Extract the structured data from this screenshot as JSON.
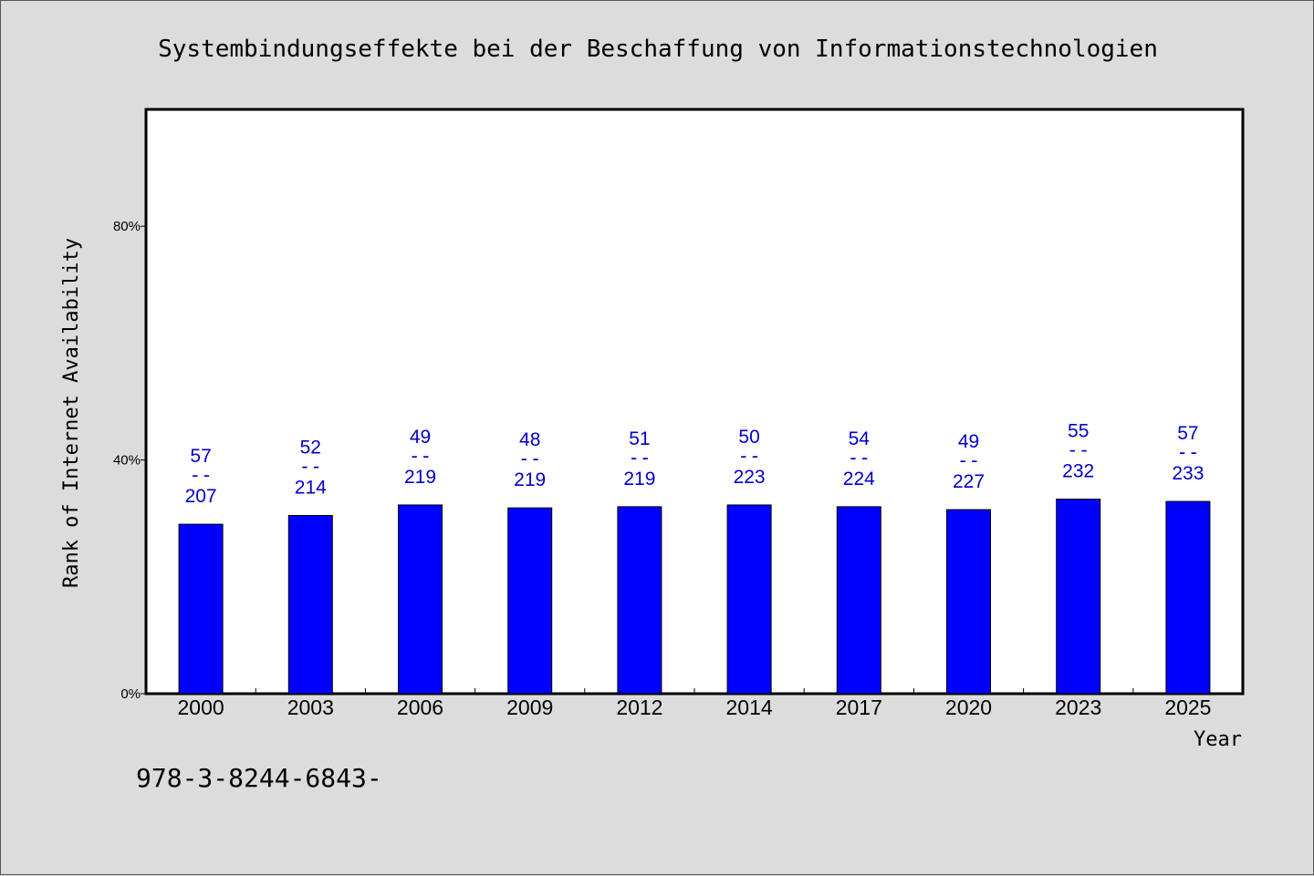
{
  "chart_data": {
    "type": "bar",
    "title": "Systembindungseffekte bei der Beschaffung von Informationstechnologien",
    "xlabel": "Year",
    "ylabel": "Rank of Internet Availability",
    "footer": "978-3-8244-6843-",
    "categories": [
      "2000",
      "2003",
      "2006",
      "2009",
      "2012",
      "2014",
      "2017",
      "2020",
      "2023",
      "2025"
    ],
    "values": [
      0.29,
      0.305,
      0.323,
      0.318,
      0.32,
      0.323,
      0.32,
      0.315,
      0.333,
      0.329
    ],
    "label_top": [
      "57",
      "52",
      "49",
      "48",
      "51",
      "50",
      "54",
      "49",
      "55",
      "57"
    ],
    "label_sep": "--",
    "label_bottom": [
      "207",
      "214",
      "219",
      "219",
      "219",
      "223",
      "224",
      "227",
      "232",
      "233"
    ],
    "ylim": [
      0,
      1
    ],
    "yticks": [
      0,
      0.4,
      0.8
    ],
    "ytick_labels": [
      "0%",
      "40%",
      "80%"
    ],
    "grid": false,
    "colors": {
      "bar": "#0000ff",
      "label": "#0000cc",
      "plot_bg": "#ffffff",
      "page_bg": "#dcdcdc"
    }
  }
}
